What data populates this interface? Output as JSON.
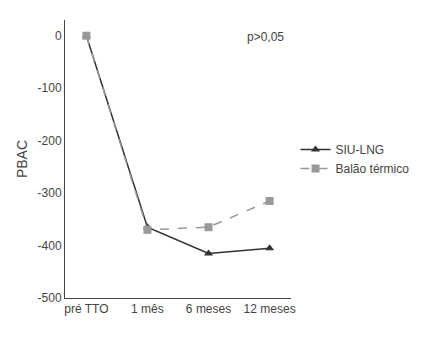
{
  "chart_data": {
    "type": "line",
    "categories": [
      "pré TTO",
      "1 mês",
      "6 meses",
      "12 meses"
    ],
    "series": [
      {
        "name": "SIU-LNG",
        "color": "#333333",
        "marker": "triangle-up",
        "line_style": "solid",
        "values": [
          0,
          -365,
          -415,
          -405
        ]
      },
      {
        "name": "Balão térmico",
        "color": "#999999",
        "marker": "square",
        "line_style": "dashed",
        "values": [
          0,
          -370,
          -365,
          -315
        ]
      }
    ],
    "ylabel": "PBAC",
    "annotations": [
      "p>0,05"
    ],
    "ylim": [
      -500,
      30
    ],
    "yticks": [
      0,
      -100,
      -200,
      -300,
      -400,
      -500
    ],
    "grid": false,
    "legend": "right"
  }
}
